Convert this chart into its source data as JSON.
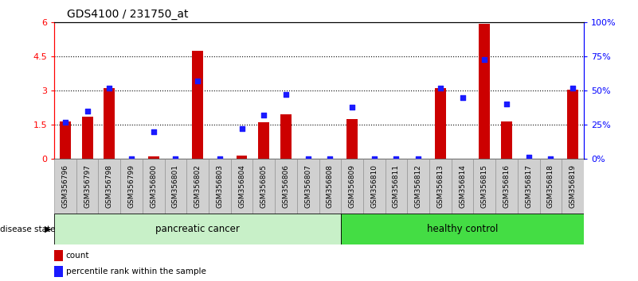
{
  "title": "GDS4100 / 231750_at",
  "samples": [
    "GSM356796",
    "GSM356797",
    "GSM356798",
    "GSM356799",
    "GSM356800",
    "GSM356801",
    "GSM356802",
    "GSM356803",
    "GSM356804",
    "GSM356805",
    "GSM356806",
    "GSM356807",
    "GSM356808",
    "GSM356809",
    "GSM356810",
    "GSM356811",
    "GSM356812",
    "GSM356813",
    "GSM356814",
    "GSM356815",
    "GSM356816",
    "GSM356817",
    "GSM356818",
    "GSM356819"
  ],
  "count_values": [
    1.65,
    1.85,
    3.1,
    0.0,
    0.12,
    0.0,
    4.75,
    0.0,
    0.14,
    1.6,
    1.95,
    0.0,
    0.0,
    1.75,
    0.0,
    0.0,
    0.0,
    3.1,
    0.0,
    5.95,
    1.65,
    0.0,
    0.0,
    3.05
  ],
  "percentile_values": [
    27,
    35,
    52,
    0,
    20,
    0,
    57,
    0,
    22,
    32,
    47,
    0,
    0,
    38,
    0,
    0,
    0,
    52,
    45,
    73,
    40,
    1,
    0,
    52
  ],
  "n_pancreatic": 13,
  "n_samples": 24,
  "ylim_left": [
    0,
    6
  ],
  "ylim_right": [
    0,
    100
  ],
  "yticks_left": [
    0,
    1.5,
    3.0,
    4.5,
    6.0
  ],
  "ytick_labels_left": [
    "0",
    "1.5",
    "3",
    "4.5",
    "6"
  ],
  "yticks_right": [
    0,
    25,
    50,
    75,
    100
  ],
  "ytick_labels_right": [
    "0%",
    "25%",
    "50%",
    "75%",
    "100%"
  ],
  "bar_color": "#cc0000",
  "dot_color": "#1a1aff",
  "background_color": "#ffffff",
  "pancreatic_color": "#c8f0c8",
  "healthy_color": "#44dd44",
  "label_box_color": "#d0d0d0",
  "label_fontsize": 7.5,
  "title_fontsize": 10,
  "tick_fontsize": 8,
  "sample_fontsize": 6.5
}
